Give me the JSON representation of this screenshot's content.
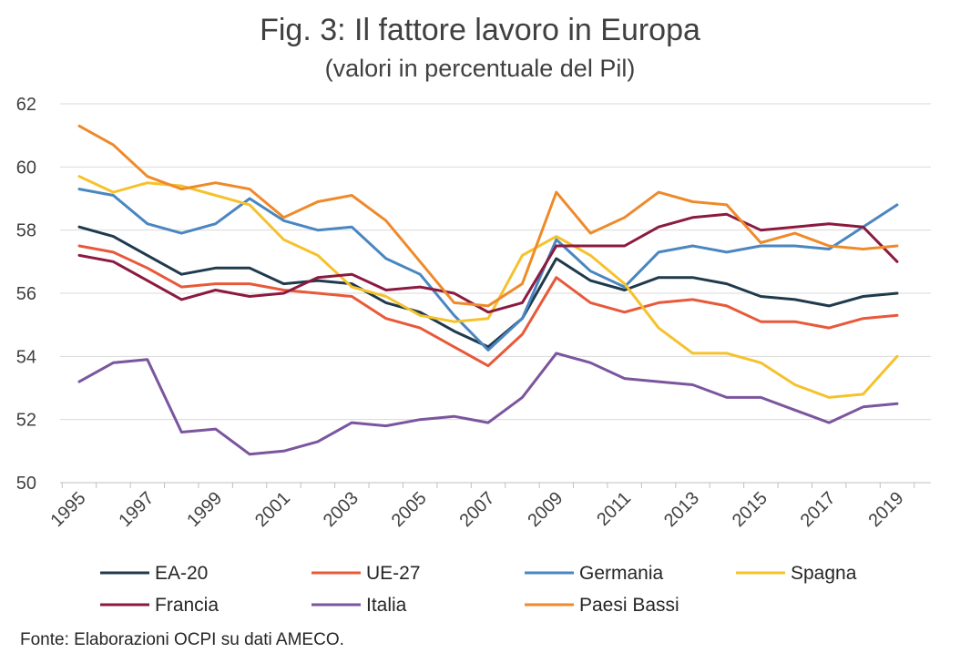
{
  "chart_data": {
    "type": "line",
    "title": "Fig. 3: Il fattore lavoro in Europa",
    "subtitle": "(valori in percentuale del Pil)",
    "x": [
      1995,
      1996,
      1997,
      1998,
      1999,
      2000,
      2001,
      2002,
      2003,
      2004,
      2005,
      2006,
      2007,
      2008,
      2009,
      2010,
      2011,
      2012,
      2013,
      2014,
      2015,
      2016,
      2017,
      2018,
      2019
    ],
    "x_tick_labels": [
      "1995",
      "1997",
      "1999",
      "2001",
      "2003",
      "2005",
      "2007",
      "2009",
      "2011",
      "2013",
      "2015",
      "2017",
      "2019"
    ],
    "y_tick_labels": [
      "50",
      "52",
      "54",
      "56",
      "58",
      "60",
      "62"
    ],
    "ylim": [
      50,
      62
    ],
    "grid": true,
    "legend_position": "bottom",
    "series": [
      {
        "name": "EA-20",
        "color": "#1f3a4d",
        "values": [
          58.1,
          57.8,
          57.2,
          56.6,
          56.8,
          56.8,
          56.3,
          56.4,
          56.3,
          55.7,
          55.4,
          54.8,
          54.3,
          55.2,
          57.1,
          56.4,
          56.1,
          56.5,
          56.5,
          56.3,
          55.9,
          55.8,
          55.6,
          55.9,
          56.0
        ]
      },
      {
        "name": "UE-27",
        "color": "#e8593a",
        "values": [
          57.5,
          57.3,
          56.8,
          56.2,
          56.3,
          56.3,
          56.1,
          56.0,
          55.9,
          55.2,
          54.9,
          54.3,
          53.7,
          54.7,
          56.5,
          55.7,
          55.4,
          55.7,
          55.8,
          55.6,
          55.1,
          55.1,
          54.9,
          55.2,
          55.3
        ]
      },
      {
        "name": "Germania",
        "color": "#4a86c0",
        "values": [
          59.3,
          59.1,
          58.2,
          57.9,
          58.2,
          59.0,
          58.3,
          58.0,
          58.1,
          57.1,
          56.6,
          55.3,
          54.2,
          55.2,
          57.7,
          56.7,
          56.2,
          57.3,
          57.5,
          57.3,
          57.5,
          57.5,
          57.4,
          58.1,
          58.8
        ]
      },
      {
        "name": "Spagna",
        "color": "#f5c22c",
        "values": [
          59.7,
          59.2,
          59.5,
          59.4,
          59.1,
          58.8,
          57.7,
          57.2,
          56.2,
          55.9,
          55.3,
          55.1,
          55.2,
          57.2,
          57.8,
          57.2,
          56.3,
          54.9,
          54.1,
          54.1,
          53.8,
          53.1,
          52.7,
          52.8,
          54.0
        ]
      },
      {
        "name": "Francia",
        "color": "#8b1a3f",
        "values": [
          57.2,
          57.0,
          56.4,
          55.8,
          56.1,
          55.9,
          56.0,
          56.5,
          56.6,
          56.1,
          56.2,
          56.0,
          55.4,
          55.7,
          57.5,
          57.5,
          57.5,
          58.1,
          58.4,
          58.5,
          58.0,
          58.1,
          58.2,
          58.1,
          57.0
        ]
      },
      {
        "name": "Italia",
        "color": "#7b559e",
        "values": [
          53.2,
          53.8,
          53.9,
          51.6,
          51.7,
          50.9,
          51.0,
          51.3,
          51.9,
          51.8,
          52.0,
          52.1,
          51.9,
          52.7,
          54.1,
          53.8,
          53.3,
          53.2,
          53.1,
          52.7,
          52.7,
          52.3,
          51.9,
          52.4,
          52.5
        ]
      },
      {
        "name": "Paesi Bassi",
        "color": "#ee8a2a",
        "values": [
          61.3,
          60.7,
          59.7,
          59.3,
          59.5,
          59.3,
          58.4,
          58.9,
          59.1,
          58.3,
          57.0,
          55.7,
          55.6,
          56.3,
          59.2,
          57.9,
          58.4,
          59.2,
          58.9,
          58.8,
          57.6,
          57.9,
          57.5,
          57.4,
          57.5
        ]
      }
    ]
  },
  "source_note": "Fonte: Elaborazioni OCPI su dati AMECO."
}
